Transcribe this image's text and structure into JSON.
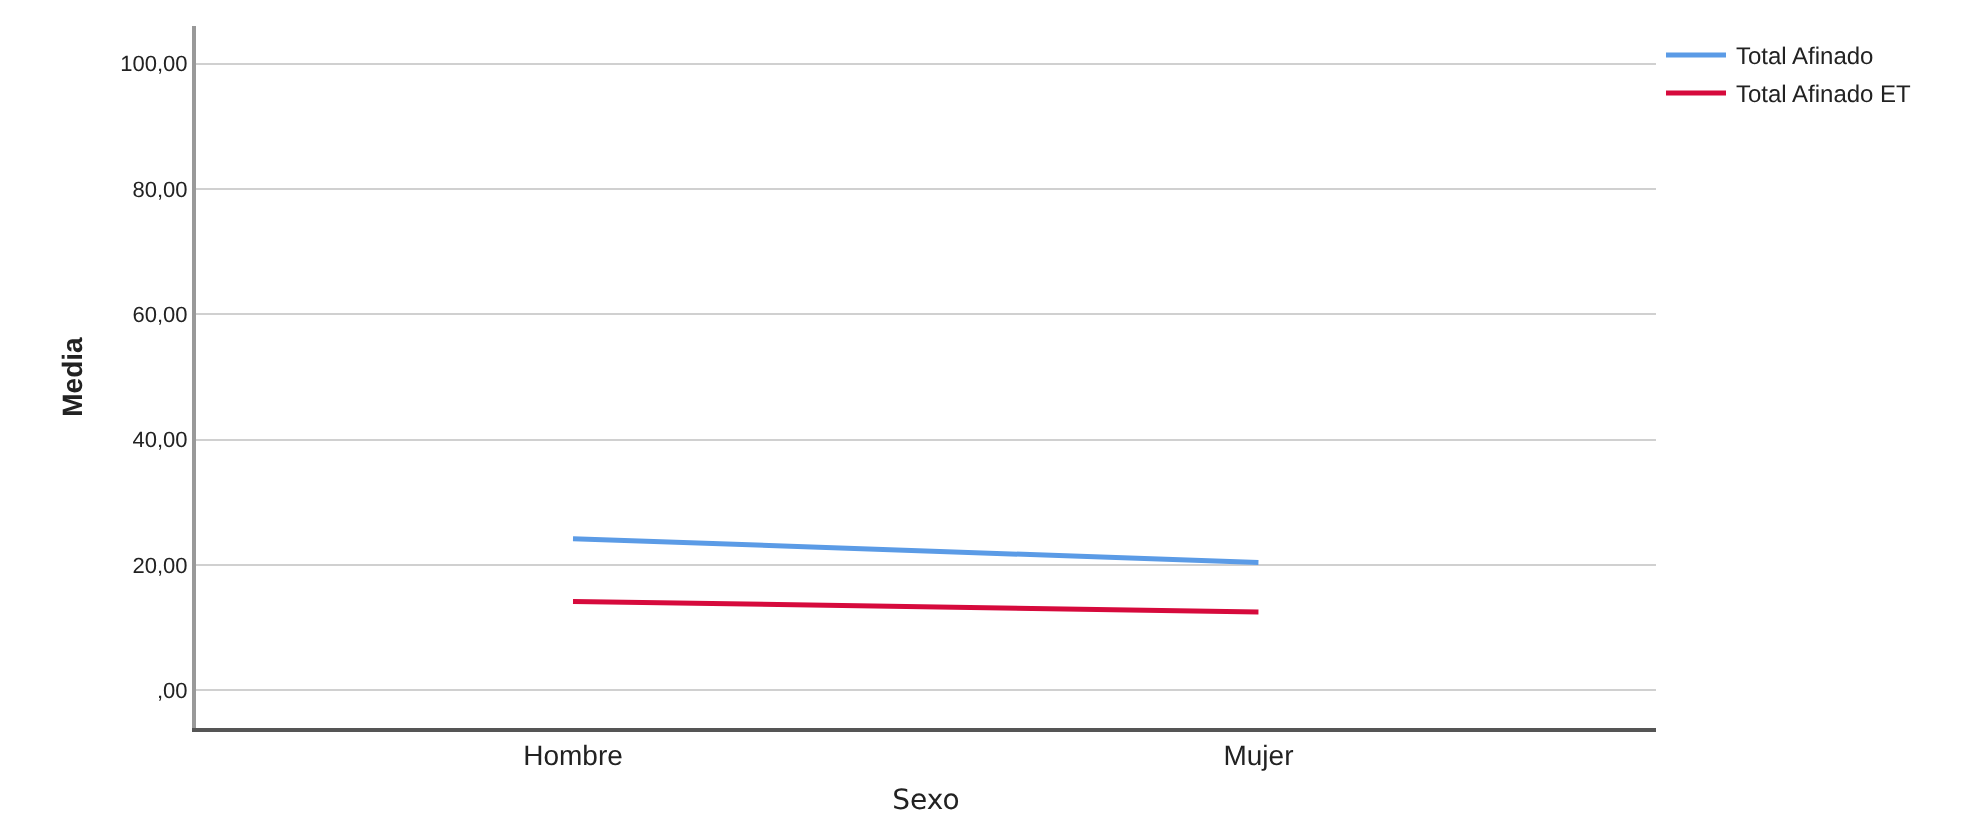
{
  "chart_data": {
    "type": "line",
    "xlabel": "Sexo",
    "ylabel": "Media",
    "categories": [
      "Hombre",
      "Mujer"
    ],
    "series": [
      {
        "name": "Total Afinado",
        "color": "#5b9be6",
        "values": [
          24.2,
          20.4
        ]
      },
      {
        "name": "Total Afinado ET",
        "color": "#d60a3c",
        "values": [
          14.2,
          12.5
        ]
      }
    ],
    "ylim": [
      -6,
      106
    ],
    "yticks": [
      {
        "value": 0,
        "label": ",00"
      },
      {
        "value": 20,
        "label": "20,00"
      },
      {
        "value": 40,
        "label": "40,00"
      },
      {
        "value": 60,
        "label": "60,00"
      },
      {
        "value": 80,
        "label": "80,00"
      },
      {
        "value": 100,
        "label": "100,00"
      }
    ],
    "grid": "y",
    "legend": "top right",
    "marker": "none",
    "line_style": "solid"
  }
}
